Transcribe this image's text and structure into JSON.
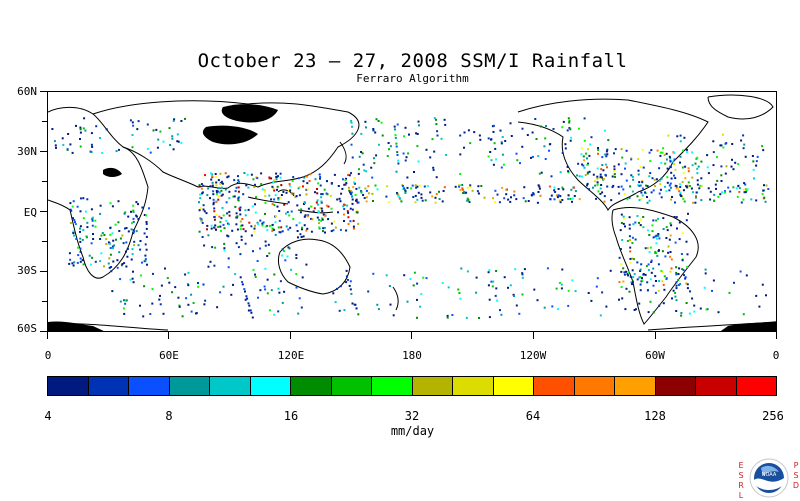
{
  "title": "October 23 – 27, 2008 SSM/I Rainfall",
  "subtitle": "Ferraro Algorithm",
  "map": {
    "lat_labels": [
      "60N",
      "30N",
      "EQ",
      "30S",
      "60S"
    ],
    "lon_labels": [
      "0",
      "60E",
      "120E",
      "180",
      "120W",
      "60W",
      "0"
    ]
  },
  "colorbar": {
    "unit": "mm/day",
    "tick_labels": [
      "4",
      "8",
      "16",
      "32",
      "64",
      "128",
      "256"
    ],
    "colors": [
      "#001a80",
      "#0033b3",
      "#0a50ff",
      "#00999a",
      "#00c8c8",
      "#00ffff",
      "#008c00",
      "#00c000",
      "#00ff00",
      "#b4b400",
      "#dcdc00",
      "#ffff00",
      "#ff5000",
      "#ff7800",
      "#ffa000",
      "#8c0000",
      "#c80000",
      "#ff0000"
    ]
  },
  "logo": {
    "left_letters": [
      "E",
      "S",
      "R",
      "L"
    ],
    "right_letters": [
      "P",
      "S",
      "D"
    ],
    "center_text": "NOAA"
  }
}
